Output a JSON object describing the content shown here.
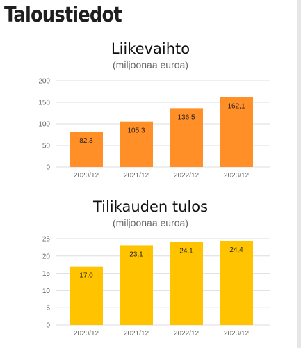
{
  "page": {
    "title": "Taloustiedot"
  },
  "chart_data": [
    {
      "type": "bar",
      "title": "Liikevaihto",
      "subtitle": "(miljoonaa euroa)",
      "categories": [
        "2020/12",
        "2021/12",
        "2022/12",
        "2023/12"
      ],
      "values": [
        82.3,
        105.3,
        136.5,
        162.1
      ],
      "value_labels": [
        "82,3",
        "105,3",
        "136,5",
        "162,1"
      ],
      "yticks": [
        0,
        50,
        100,
        150,
        200
      ],
      "ylim": [
        0,
        200
      ],
      "bar_color": "#ff8f26",
      "grid": true,
      "legend": "none"
    },
    {
      "type": "bar",
      "title": "Tilikauden tulos",
      "subtitle": "(miljoonaa euroa)",
      "categories": [
        "2020/12",
        "2021/12",
        "2022/12",
        "2023/12"
      ],
      "values": [
        17.0,
        23.1,
        24.1,
        24.4
      ],
      "value_labels": [
        "17,0",
        "23,1",
        "24,1",
        "24,4"
      ],
      "yticks": [
        0,
        5,
        10,
        15,
        20,
        25
      ],
      "ylim": [
        0,
        25
      ],
      "bar_color": "#ffc300",
      "grid": true,
      "legend": "none"
    }
  ]
}
